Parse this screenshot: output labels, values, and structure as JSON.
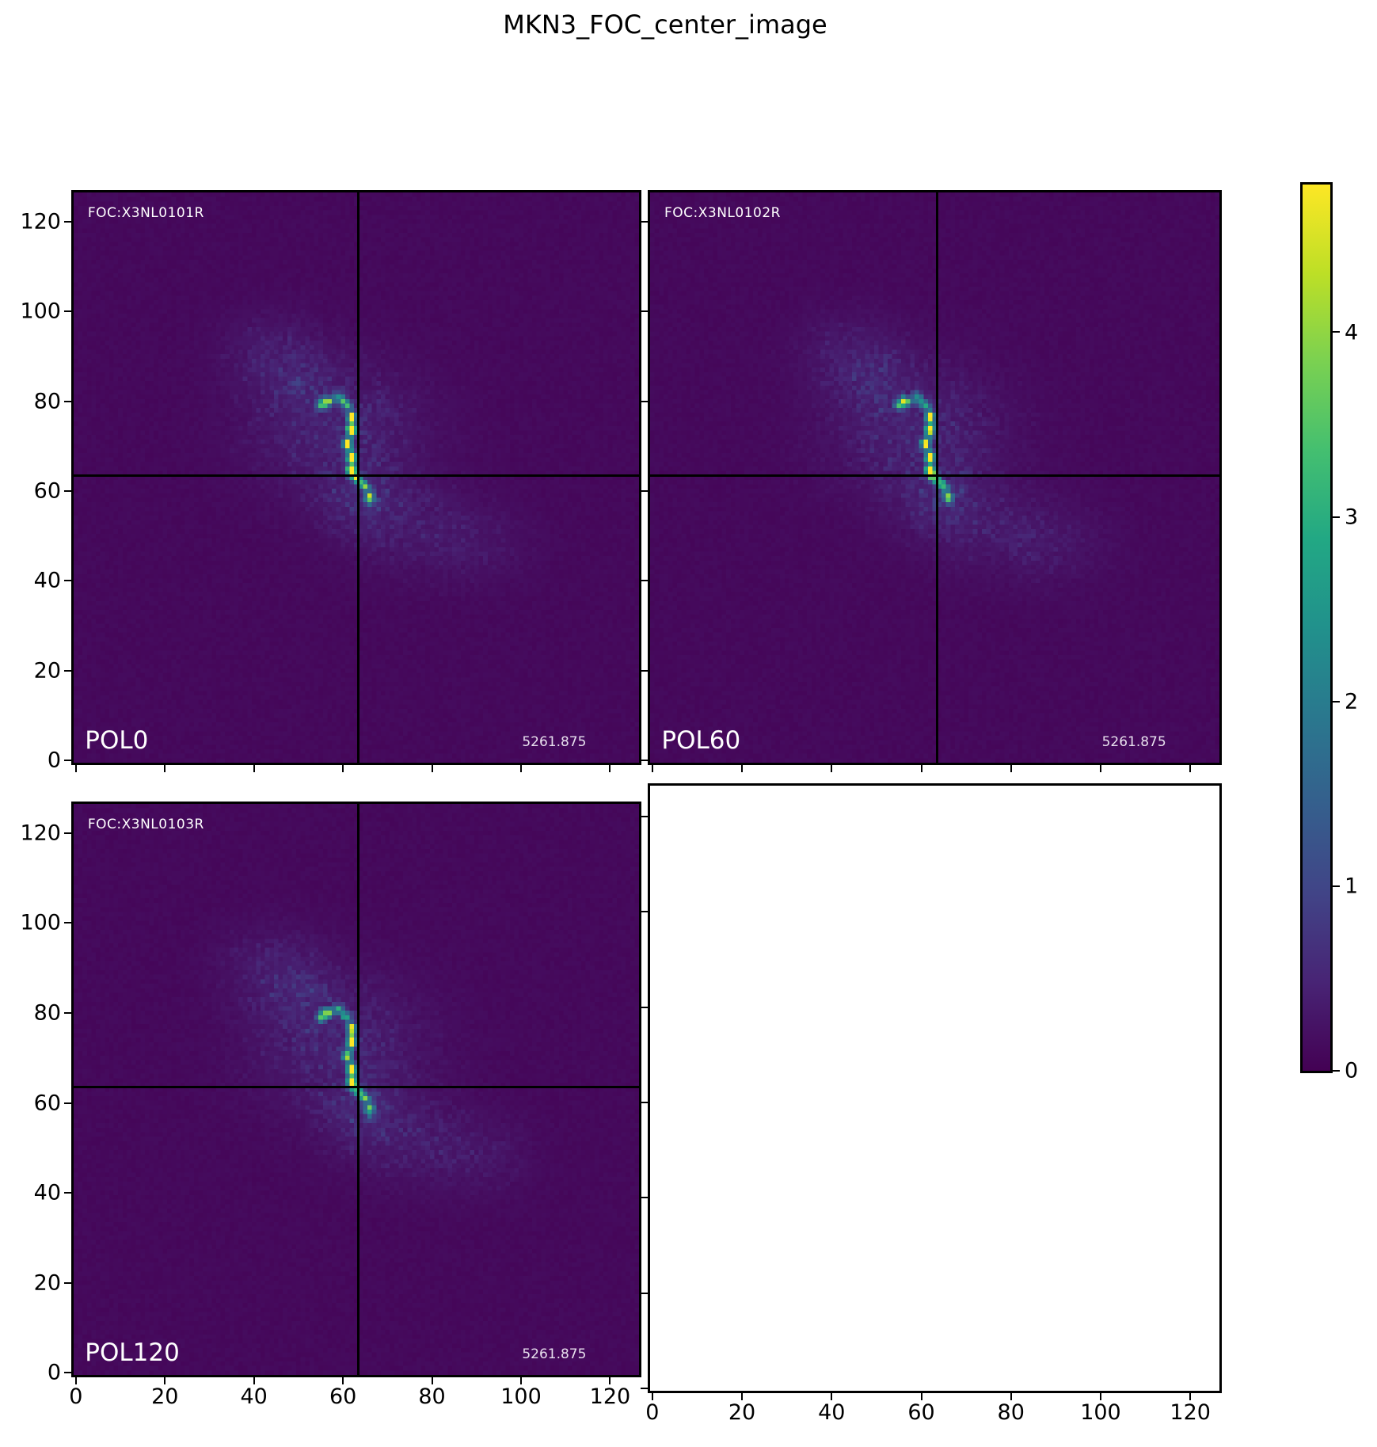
{
  "chart_data": {
    "type": "heatmap",
    "title": "MKN3_FOC_center_image",
    "colormap": "viridis",
    "vmin": 0,
    "vmax": 4.8,
    "image_size": 127,
    "x_ticks": [
      0,
      20,
      40,
      60,
      80,
      100,
      120
    ],
    "y_ticks": [
      0,
      20,
      40,
      60,
      80,
      100,
      120
    ],
    "colorbar_ticks": [
      0,
      1,
      2,
      3,
      4
    ],
    "crosshair": {
      "x": 63.5,
      "y": 63.5
    },
    "background_level": 0.07,
    "noise_level": 0.08,
    "halo_blobs": [
      {
        "x": 59,
        "y": 73,
        "sx": 13,
        "sy": 10,
        "amp": 0.5
      },
      {
        "x": 44,
        "y": 91,
        "sx": 8,
        "sy": 6,
        "amp": 0.3
      },
      {
        "x": 50,
        "y": 84,
        "sx": 6,
        "sy": 5,
        "amp": 0.3
      },
      {
        "x": 64,
        "y": 58,
        "sx": 6,
        "sy": 5,
        "amp": 0.42
      },
      {
        "x": 74,
        "y": 52,
        "sx": 10,
        "sy": 7,
        "amp": 0.28
      },
      {
        "x": 90,
        "y": 48,
        "sx": 8,
        "sy": 6,
        "amp": 0.22
      }
    ],
    "arc_points": [
      [
        54.5,
        78.5,
        2.8
      ],
      [
        55.5,
        79.5,
        3.0
      ],
      [
        57,
        80,
        2.2
      ],
      [
        58.5,
        80.5,
        1.9
      ],
      [
        60,
        80,
        2.0
      ],
      [
        61,
        78.5,
        2.4
      ],
      [
        61.5,
        77,
        2.7
      ],
      [
        62,
        75.5,
        3.1
      ],
      [
        62,
        74,
        4.4
      ],
      [
        61.5,
        72.5,
        3.0
      ],
      [
        61,
        71,
        2.6
      ],
      [
        61,
        69.5,
        2.9
      ],
      [
        61.5,
        68,
        3.2
      ],
      [
        61.5,
        66.5,
        3.7
      ],
      [
        62,
        65,
        4.7
      ],
      [
        61.5,
        63.5,
        3.5
      ],
      [
        62.5,
        62.5,
        2.7
      ],
      [
        63.5,
        61.5,
        2.2
      ],
      [
        65,
        60.5,
        2.5
      ],
      [
        65.5,
        59,
        2.7
      ],
      [
        66,
        57.5,
        1.8
      ]
    ],
    "viridis_stops": [
      [
        0.0,
        "#440154"
      ],
      [
        0.1,
        "#482475"
      ],
      [
        0.2,
        "#414487"
      ],
      [
        0.3,
        "#355f8d"
      ],
      [
        0.4,
        "#2a788e"
      ],
      [
        0.5,
        "#21918c"
      ],
      [
        0.6,
        "#22a884"
      ],
      [
        0.7,
        "#44bf70"
      ],
      [
        0.8,
        "#7ad151"
      ],
      [
        0.9,
        "#bddf26"
      ],
      [
        1.0,
        "#fde725"
      ]
    ],
    "panels": [
      {
        "pol_label": "POL0",
        "foc_label": "FOC:X3NL0101R",
        "annotation": "5261.875",
        "seed": 11,
        "has_image": true,
        "show_x_tick_labels": false,
        "show_y_tick_labels": true
      },
      {
        "pol_label": "POL60",
        "foc_label": "FOC:X3NL0102R",
        "annotation": "5261.875",
        "seed": 23,
        "has_image": true,
        "show_x_tick_labels": false,
        "show_y_tick_labels": false
      },
      {
        "pol_label": "POL120",
        "foc_label": "FOC:X3NL0103R",
        "annotation": "5261.875",
        "seed": 37,
        "has_image": true,
        "show_x_tick_labels": true,
        "show_y_tick_labels": true
      },
      {
        "pol_label": "",
        "foc_label": "",
        "annotation": "",
        "seed": 0,
        "has_image": false,
        "show_x_tick_labels": true,
        "show_y_tick_labels": false
      }
    ]
  }
}
